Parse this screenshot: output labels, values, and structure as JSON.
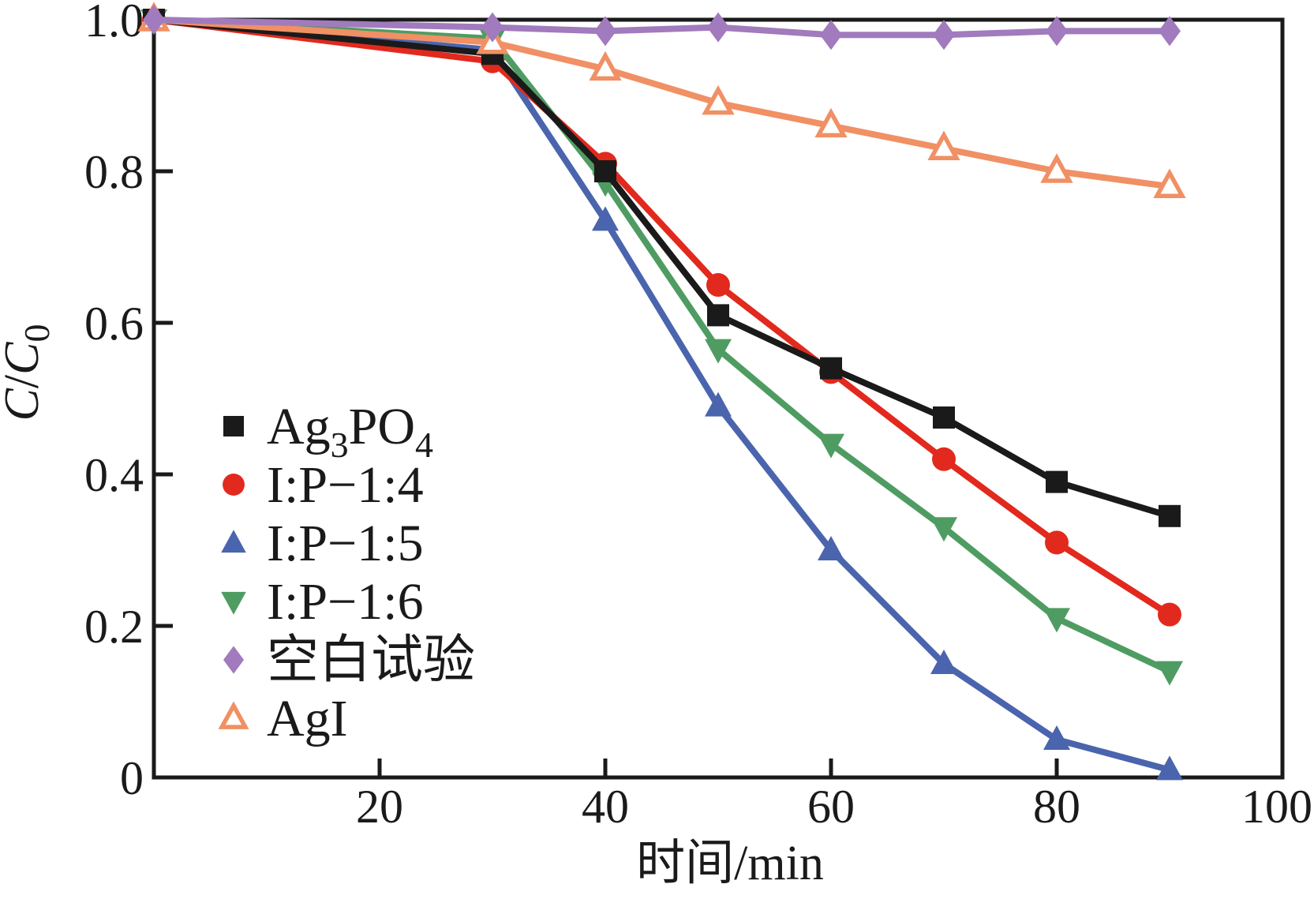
{
  "chart_data": {
    "type": "line",
    "x": [
      0,
      30,
      40,
      50,
      60,
      70,
      80,
      90
    ],
    "series": [
      {
        "name": "Ag₃PO₄",
        "label_segments": [
          {
            "t": "Ag"
          },
          {
            "t": "3",
            "sub": true
          },
          {
            "t": "PO"
          },
          {
            "t": "4",
            "sub": true
          }
        ],
        "color": "#1a1a1a",
        "marker": "square",
        "values": [
          1.0,
          0.955,
          0.8,
          0.61,
          0.54,
          0.475,
          0.39,
          0.345
        ]
      },
      {
        "name": "I:P−1:4",
        "label_segments": [
          {
            "t": "I:P−1:4"
          }
        ],
        "color": "#e2291d",
        "marker": "circle",
        "values": [
          1.0,
          0.945,
          0.81,
          0.65,
          0.535,
          0.42,
          0.31,
          0.215
        ]
      },
      {
        "name": "I:P−1:5",
        "label_segments": [
          {
            "t": "I:P−1:5"
          }
        ],
        "color": "#4a65ad",
        "marker": "triangle-up",
        "values": [
          1.0,
          0.96,
          0.735,
          0.49,
          0.3,
          0.15,
          0.05,
          0.01
        ]
      },
      {
        "name": "I:P−1:6",
        "label_segments": [
          {
            "t": "I:P−1:6"
          }
        ],
        "color": "#4f9c63",
        "marker": "triangle-down",
        "values": [
          1.0,
          0.975,
          0.785,
          0.565,
          0.44,
          0.33,
          0.21,
          0.14
        ]
      },
      {
        "name": "空白试验",
        "label_segments": [
          {
            "t": "空白试验"
          }
        ],
        "color": "#a17bbd",
        "marker": "diamond",
        "values": [
          1.0,
          0.99,
          0.985,
          0.99,
          0.98,
          0.98,
          0.985,
          0.985
        ]
      },
      {
        "name": "AgI",
        "label_segments": [
          {
            "t": "AgI"
          }
        ],
        "color": "#f09064",
        "marker": "triangle-up-open",
        "values": [
          1.0,
          0.97,
          0.935,
          0.89,
          0.86,
          0.83,
          0.8,
          0.78
        ]
      }
    ],
    "xlabel": "时间/min",
    "ylabel": "C/C0",
    "ylabel_segments": [
      {
        "t": "C",
        "italic": true
      },
      {
        "t": "/"
      },
      {
        "t": "C",
        "italic": true
      },
      {
        "t": "0",
        "sub": true
      }
    ],
    "xlim": [
      0,
      100
    ],
    "ylim": [
      0,
      1.0
    ],
    "x_ticks": [
      {
        "v": 20,
        "label": "20",
        "mark": true
      },
      {
        "v": 40,
        "label": "40",
        "mark": true
      },
      {
        "v": 60,
        "label": "60",
        "mark": true
      },
      {
        "v": 80,
        "label": "80",
        "mark": true
      },
      {
        "v": 100,
        "label": "100",
        "mark": false
      }
    ],
    "y_ticks": [
      {
        "v": 1.0,
        "label": "1.0",
        "mark": false
      },
      {
        "v": 0.8,
        "label": "0.8",
        "mark": true
      },
      {
        "v": 0.6,
        "label": "0.6",
        "mark": true
      },
      {
        "v": 0.4,
        "label": "0.4",
        "mark": true
      },
      {
        "v": 0.2,
        "label": "0.2",
        "mark": true
      },
      {
        "v": 0.0,
        "label": "0",
        "mark": false
      }
    ],
    "grid": false,
    "legend_position": "inside-lower-left"
  }
}
